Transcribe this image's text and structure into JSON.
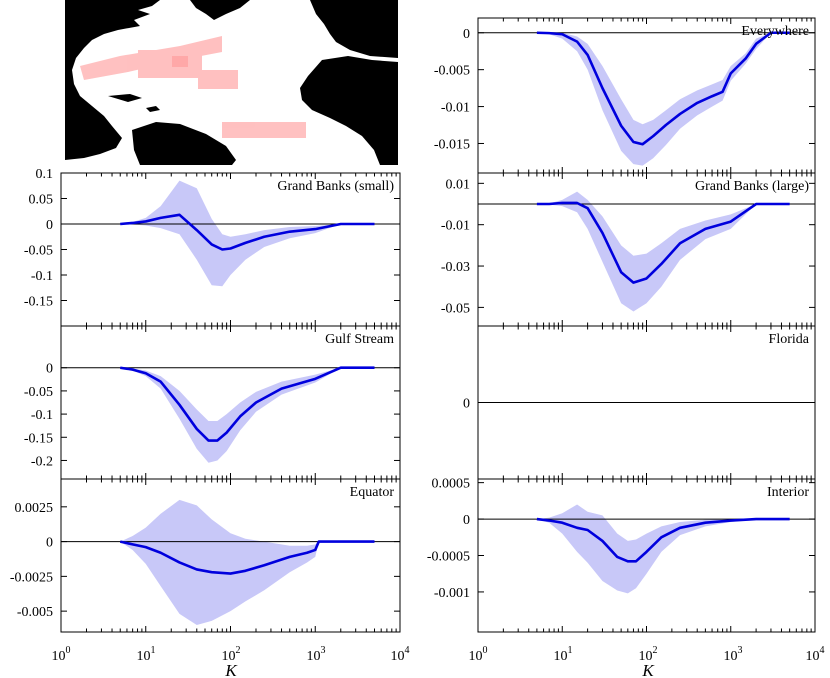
{
  "map": {
    "land_color": "#000000",
    "ocean_color": "#ffffff",
    "region_color": "#ffb6b6"
  },
  "shared_x": {
    "label": "K",
    "scale": "log",
    "xlim": [
      1,
      10000
    ],
    "tick_labels": [
      {
        "base": "10",
        "exp": "0"
      },
      {
        "base": "10",
        "exp": "1"
      },
      {
        "base": "10",
        "exp": "2"
      },
      {
        "base": "10",
        "exp": "3"
      },
      {
        "base": "10",
        "exp": "4"
      }
    ]
  },
  "chart_data": [
    {
      "type": "line",
      "title": "Everywhere",
      "xlabel": "K",
      "ylabel": "",
      "ylim": [
        -0.019,
        0.002
      ],
      "yticks": [
        0,
        -0.005,
        -0.01,
        -0.015
      ],
      "ytick_labels": [
        "0",
        "-0.005",
        "-0.01",
        "-0.015"
      ],
      "line_color": "#0000dd",
      "band_color": "#c8c8f8",
      "x": [
        5,
        7,
        10,
        15,
        20,
        30,
        50,
        70,
        90,
        120,
        170,
        250,
        400,
        600,
        800,
        1000,
        1500,
        2000,
        3000,
        5000
      ],
      "mean": [
        0,
        -5e-05,
        -0.0002,
        -0.0012,
        -0.003,
        -0.0075,
        -0.0126,
        -0.0148,
        -0.0151,
        -0.014,
        -0.0125,
        -0.011,
        -0.0095,
        -0.0086,
        -0.008,
        -0.0055,
        -0.0035,
        -0.0015,
        0,
        0
      ],
      "upper": [
        0,
        0,
        0,
        -0.0005,
        -0.0015,
        -0.0045,
        -0.009,
        -0.0118,
        -0.0124,
        -0.0118,
        -0.0105,
        -0.009,
        -0.0078,
        -0.007,
        -0.0064,
        -0.0045,
        -0.0028,
        -0.0008,
        0,
        0
      ],
      "lower": [
        0,
        -0.0002,
        -0.0008,
        -0.0025,
        -0.005,
        -0.0105,
        -0.016,
        -0.0178,
        -0.018,
        -0.017,
        -0.0152,
        -0.013,
        -0.0112,
        -0.01,
        -0.0092,
        -0.0065,
        -0.0042,
        -0.0022,
        0,
        0
      ]
    },
    {
      "type": "line",
      "title": "Grand Banks (small)",
      "xlabel": "K",
      "ylabel": "",
      "ylim": [
        -0.2,
        0.1
      ],
      "yticks": [
        0.1,
        0.05,
        0,
        -0.05,
        -0.1,
        -0.15
      ],
      "ytick_labels": [
        "0.1",
        "0.05",
        "0",
        "-0.05",
        "-0.1",
        "-0.15"
      ],
      "line_color": "#0000dd",
      "band_color": "#c8c8f8",
      "x": [
        5,
        7,
        10,
        15,
        25,
        40,
        60,
        80,
        100,
        150,
        250,
        500,
        1000,
        2000,
        5000
      ],
      "mean": [
        0,
        0.002,
        0.005,
        0.012,
        0.018,
        -0.012,
        -0.04,
        -0.05,
        -0.048,
        -0.037,
        -0.025,
        -0.015,
        -0.01,
        0,
        0
      ],
      "upper": [
        0,
        0.004,
        0.012,
        0.035,
        0.085,
        0.07,
        0.01,
        -0.02,
        -0.025,
        -0.02,
        -0.012,
        -0.006,
        -0.004,
        0,
        0
      ],
      "lower": [
        0,
        -0.001,
        -0.003,
        -0.008,
        -0.02,
        -0.07,
        -0.12,
        -0.122,
        -0.1,
        -0.07,
        -0.045,
        -0.028,
        -0.018,
        0,
        0
      ]
    },
    {
      "type": "line",
      "title": "Grand Banks (large)",
      "xlabel": "K",
      "ylabel": "",
      "ylim": [
        -0.059,
        0.015
      ],
      "yticks": [
        0.01,
        -0.01,
        -0.03,
        -0.05
      ],
      "ytick_labels": [
        "0.01",
        "-0.01",
        "-0.03",
        "-0.05"
      ],
      "line_color": "#0000dd",
      "band_color": "#c8c8f8",
      "x": [
        5,
        7,
        10,
        15,
        20,
        30,
        50,
        70,
        100,
        150,
        250,
        500,
        1000,
        2000,
        5000
      ],
      "mean": [
        0,
        0,
        0.0005,
        0.0005,
        -0.002,
        -0.014,
        -0.033,
        -0.038,
        -0.036,
        -0.029,
        -0.019,
        -0.012,
        -0.0085,
        0,
        0
      ],
      "upper": [
        0,
        0.0003,
        0.002,
        0.006,
        0.002,
        -0.006,
        -0.02,
        -0.025,
        -0.024,
        -0.019,
        -0.012,
        -0.008,
        -0.005,
        0,
        0
      ],
      "lower": [
        0,
        -0.0003,
        -0.001,
        -0.004,
        -0.012,
        -0.028,
        -0.048,
        -0.052,
        -0.048,
        -0.04,
        -0.027,
        -0.017,
        -0.012,
        0,
        0
      ]
    },
    {
      "type": "line",
      "title": "Gulf Stream",
      "xlabel": "K",
      "ylabel": "",
      "ylim": [
        -0.24,
        0.09
      ],
      "yticks": [
        0,
        -0.05,
        -0.1,
        -0.15,
        -0.2
      ],
      "ytick_labels": [
        "0",
        "-0.05",
        "-0.1",
        "-0.15",
        "-0.2"
      ],
      "line_color": "#0000dd",
      "band_color": "#c8c8f8",
      "x": [
        5,
        7,
        10,
        15,
        25,
        40,
        55,
        70,
        90,
        130,
        200,
        400,
        1000,
        2000,
        5000
      ],
      "mean": [
        0,
        -0.004,
        -0.012,
        -0.03,
        -0.08,
        -0.132,
        -0.157,
        -0.157,
        -0.14,
        -0.105,
        -0.075,
        -0.045,
        -0.024,
        0,
        0
      ],
      "upper": [
        0,
        -0.002,
        -0.006,
        -0.018,
        -0.05,
        -0.09,
        -0.115,
        -0.115,
        -0.1,
        -0.075,
        -0.052,
        -0.03,
        -0.015,
        0,
        0
      ],
      "lower": [
        0,
        -0.006,
        -0.018,
        -0.045,
        -0.11,
        -0.175,
        -0.205,
        -0.2,
        -0.18,
        -0.135,
        -0.095,
        -0.058,
        -0.032,
        0,
        0
      ]
    },
    {
      "type": "line",
      "title": "Florida",
      "xlabel": "K",
      "ylabel": "",
      "ylim": [
        -1,
        1
      ],
      "yticks": [
        0
      ],
      "ytick_labels": [
        "0"
      ],
      "line_color": "#0000dd",
      "band_color": "#c8c8f8",
      "x": [],
      "mean": [],
      "upper": [],
      "lower": []
    },
    {
      "type": "line",
      "title": "Equator",
      "xlabel": "K",
      "ylabel": "",
      "ylim": [
        -0.0065,
        0.0045
      ],
      "yticks": [
        0.0025,
        0,
        -0.0025,
        -0.005
      ],
      "ytick_labels": [
        "0.0025",
        "0",
        "-0.0025",
        "-0.005"
      ],
      "line_color": "#0000dd",
      "band_color": "#c8c8f8",
      "x": [
        5,
        7,
        10,
        15,
        25,
        40,
        60,
        100,
        150,
        250,
        500,
        800,
        1000,
        1100,
        2000,
        5000
      ],
      "mean": [
        0,
        -0.0002,
        -0.0004,
        -0.0008,
        -0.0015,
        -0.002,
        -0.0022,
        -0.0023,
        -0.0021,
        -0.0017,
        -0.0011,
        -0.0008,
        -0.0006,
        0,
        0,
        0
      ],
      "upper": [
        0,
        0.0004,
        0.001,
        0.002,
        0.003,
        0.0026,
        0.0016,
        0.0006,
        0.0002,
        0.0,
        -0.0003,
        -0.0003,
        -0.0002,
        0,
        0,
        0
      ],
      "lower": [
        0,
        -0.0006,
        -0.0016,
        -0.0032,
        -0.0052,
        -0.006,
        -0.0057,
        -0.005,
        -0.0043,
        -0.0035,
        -0.0022,
        -0.0015,
        -0.0011,
        0,
        0,
        0
      ]
    },
    {
      "type": "line",
      "title": "Interior",
      "xlabel": "K",
      "ylabel": "",
      "ylim": [
        -0.00155,
        0.00055
      ],
      "yticks": [
        0.0005,
        0,
        -0.0005,
        -0.001
      ],
      "ytick_labels": [
        "0.0005",
        "0",
        "-0.0005",
        "-0.001"
      ],
      "line_color": "#0000dd",
      "band_color": "#c8c8f8",
      "x": [
        5,
        7,
        10,
        15,
        20,
        30,
        45,
        60,
        75,
        100,
        150,
        250,
        500,
        1000,
        2000,
        5000
      ],
      "mean": [
        0,
        -2e-05,
        -5e-05,
        -0.00012,
        -0.00015,
        -0.0003,
        -0.00052,
        -0.00058,
        -0.00058,
        -0.00045,
        -0.00025,
        -0.00012,
        -5e-05,
        -2e-05,
        0,
        0
      ],
      "upper": [
        0,
        2e-05,
        8e-05,
        0.0002,
        0.0001,
        5e-05,
        -0.0002,
        -0.0003,
        -0.00028,
        -0.0002,
        -0.0001,
        -4e-05,
        -1e-05,
        0,
        0,
        0
      ],
      "lower": [
        0,
        -5e-05,
        -0.0002,
        -0.00045,
        -0.0006,
        -0.00085,
        -0.00098,
        -0.00102,
        -0.00095,
        -0.00075,
        -0.00045,
        -0.00022,
        -0.0001,
        -4e-05,
        0,
        0
      ]
    }
  ]
}
